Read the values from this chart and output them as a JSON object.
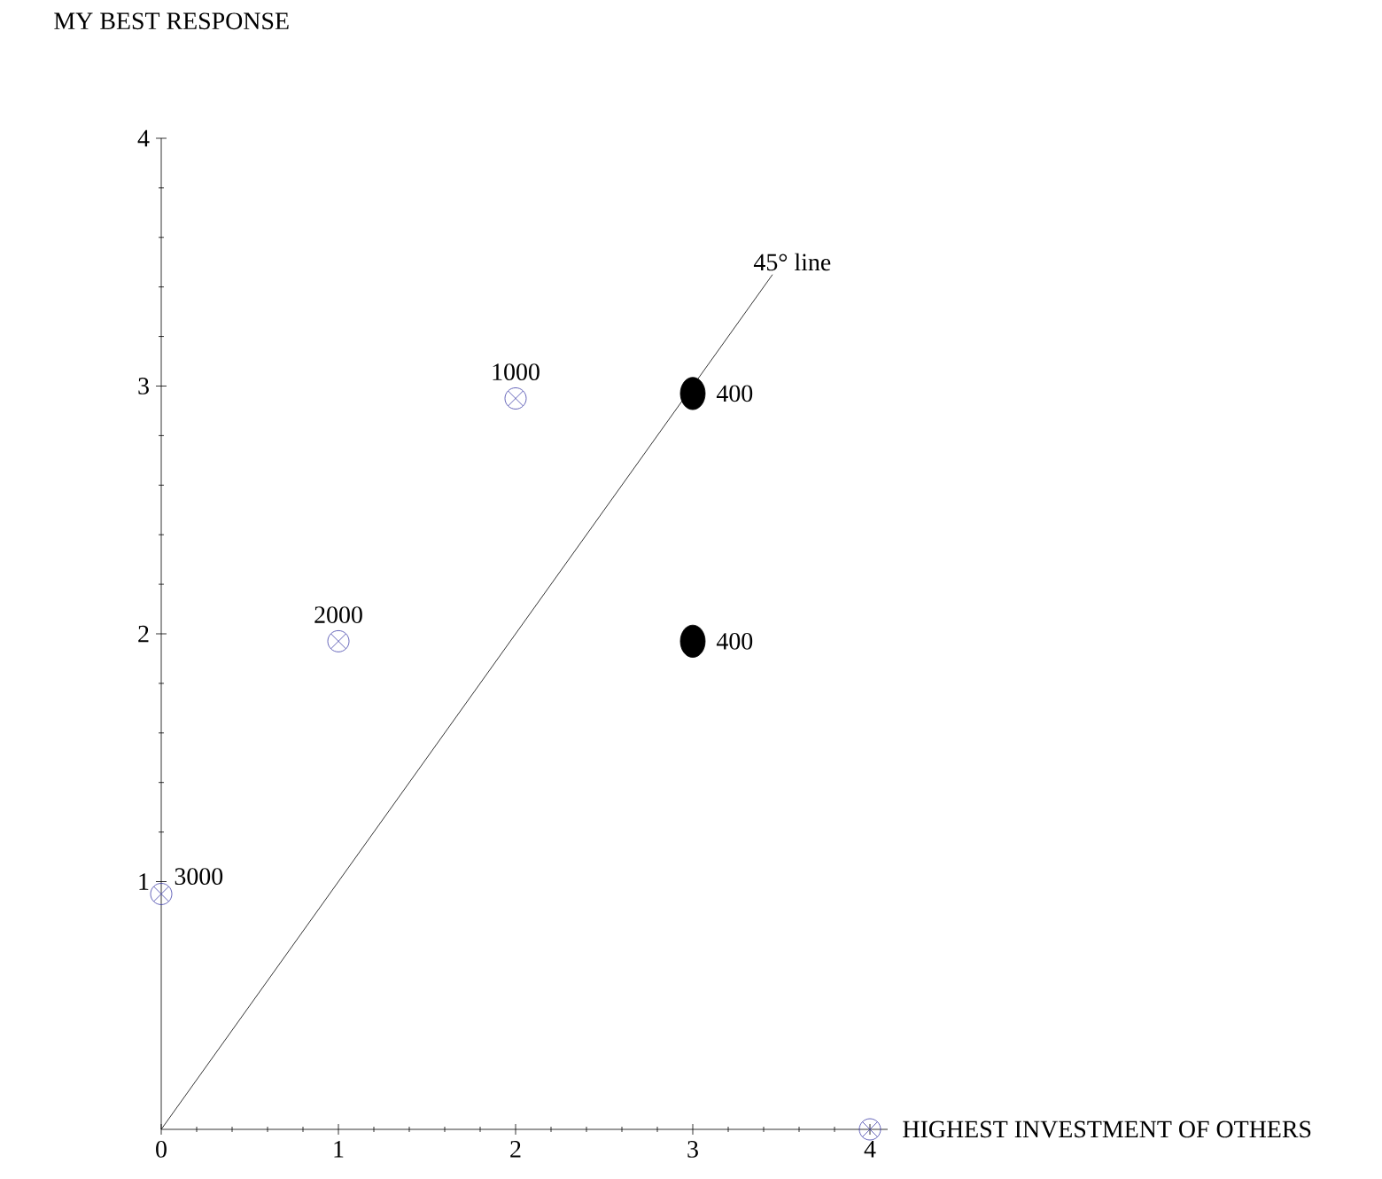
{
  "chart_data": {
    "type": "scatter",
    "xlabel": "HIGHEST INVESTMENT  OF OTHERS",
    "ylabel": "MY BEST RESPONSE",
    "xlim": [
      0,
      4.1
    ],
    "ylim": [
      0,
      4
    ],
    "xticks": [
      0,
      1,
      2,
      3,
      4
    ],
    "yticks": [
      1,
      2,
      3,
      4
    ],
    "grid": false,
    "series": [
      {
        "type": "line",
        "color": "#000000",
        "marker": "none",
        "x": [
          0,
          3.45
        ],
        "values": [
          0,
          3.45
        ]
      },
      {
        "color": "#3f3fa8",
        "marker": "cross",
        "x": [
          0,
          1,
          2,
          4
        ],
        "values": [
          0.95,
          1.97,
          2.95,
          0
        ]
      },
      {
        "color": "#000000",
        "marker": "circle",
        "x": [
          3,
          3
        ],
        "values": [
          2.97,
          1.97
        ]
      }
    ],
    "annotations": [
      {
        "text": "3000",
        "x": 0,
        "y": 0.95
      },
      {
        "text": "2000",
        "x": 1,
        "y": 1.97
      },
      {
        "text": "1000",
        "x": 2,
        "y": 2.95
      },
      {
        "text": "400",
        "x": 3,
        "y": 2.97
      },
      {
        "text": "400",
        "x": 3,
        "y": 1.97
      },
      {
        "text": "45° line",
        "x": 3.45,
        "y": 3.45
      }
    ]
  }
}
